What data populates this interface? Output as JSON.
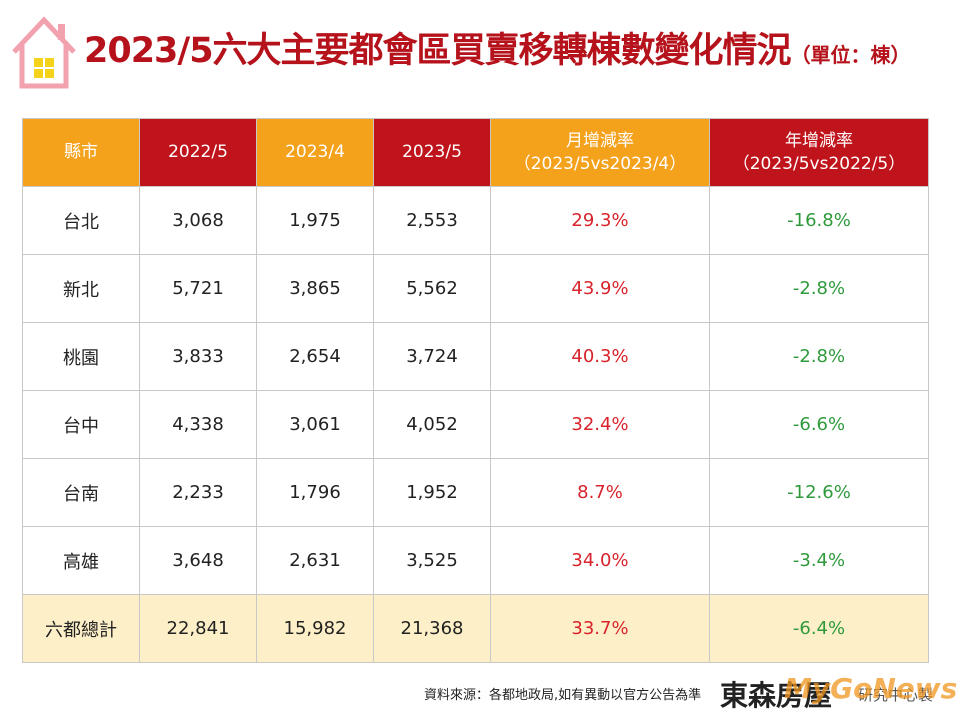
{
  "header": {
    "title": "2023/5六大主要都會區買賣移轉棟數變化情況",
    "unit": "（單位：棟）"
  },
  "table": {
    "columns": [
      {
        "label": "縣市"
      },
      {
        "label": "2022/5"
      },
      {
        "label": "2023/4"
      },
      {
        "label": "2023/5"
      },
      {
        "label": "月增減率",
        "sub": "（2023/5vs2023/4）"
      },
      {
        "label": "年增減率",
        "sub": "（2023/5vs2022/5）"
      }
    ],
    "rows": [
      [
        "台北",
        "3,068",
        "1,975",
        "2,553",
        "29.3%",
        "-16.8%"
      ],
      [
        "新北",
        "5,721",
        "3,865",
        "5,562",
        "43.9%",
        "-2.8%"
      ],
      [
        "桃園",
        "3,833",
        "2,654",
        "3,724",
        "40.3%",
        "-2.8%"
      ],
      [
        "台中",
        "4,338",
        "3,061",
        "4,052",
        "32.4%",
        "-6.6%"
      ],
      [
        "台南",
        "2,233",
        "1,796",
        "1,952",
        "8.7%",
        "-12.6%"
      ],
      [
        "高雄",
        "3,648",
        "2,631",
        "3,525",
        "34.0%",
        "-3.4%"
      ],
      [
        "六都總計",
        "22,841",
        "15,982",
        "21,368",
        "33.7%",
        "-6.4%"
      ]
    ]
  },
  "footer": {
    "source": "資料來源：各都地政局,如有異動以官方公告為準",
    "brand": "東森房屋",
    "brand_sub": "研究中心製",
    "watermark": "MyGoNews"
  }
}
